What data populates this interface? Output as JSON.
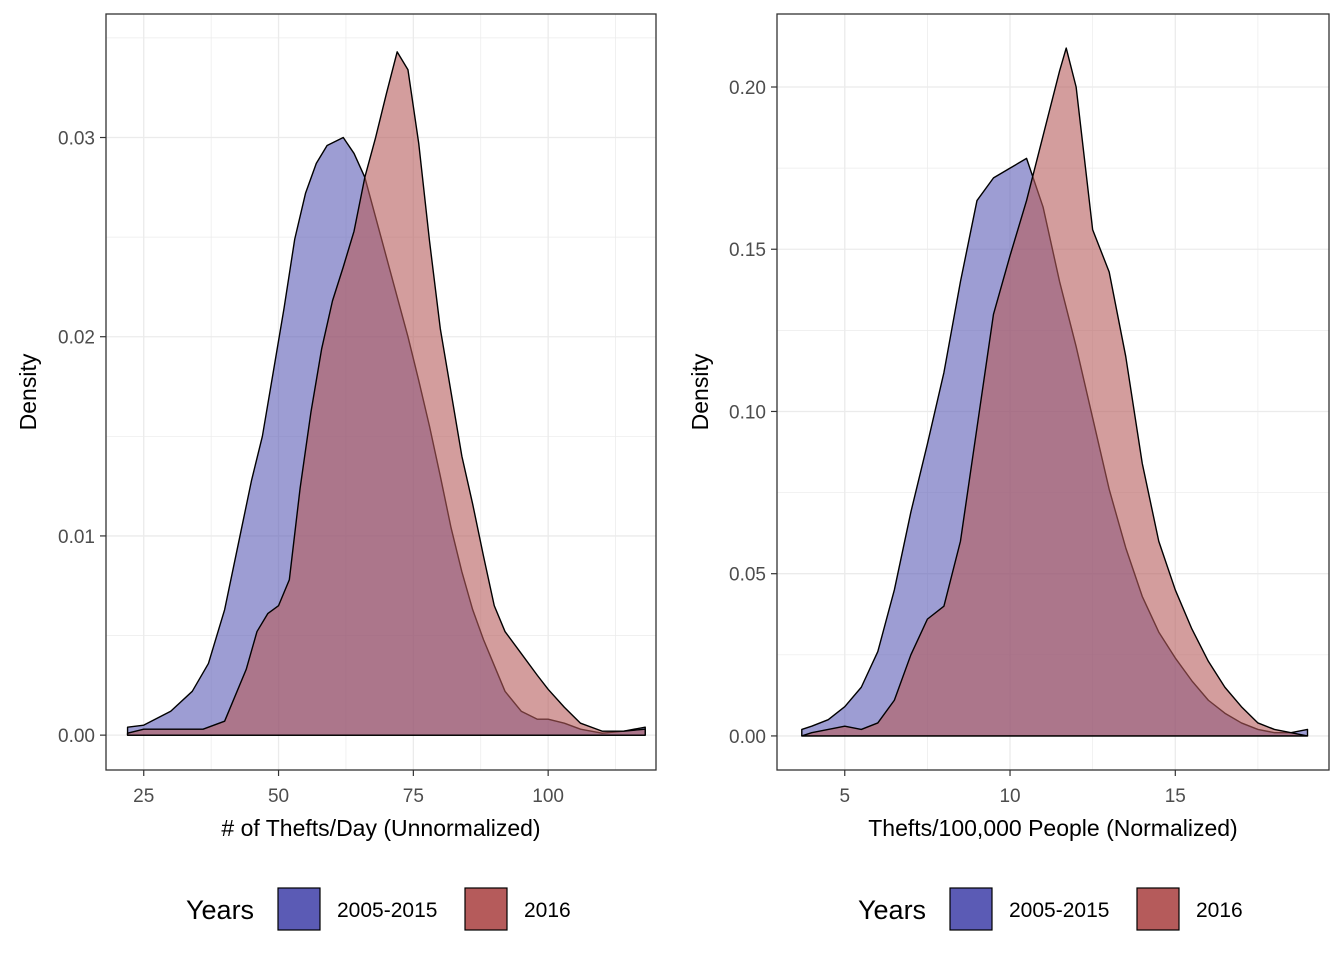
{
  "chart_data": [
    {
      "type": "area",
      "chart_kind": "density",
      "xlabel": "# of Thefts/Day (Unnormalized)",
      "ylabel": "Density",
      "xlim": [
        18,
        120
      ],
      "ylim": [
        -0.00175,
        0.0362
      ],
      "x_ticks": [
        25,
        50,
        75,
        100
      ],
      "x_tick_labels": [
        "25",
        "50",
        "75",
        "100"
      ],
      "y_ticks": [
        0.0,
        0.01,
        0.02,
        0.03
      ],
      "y_tick_labels": [
        "0.00",
        "0.01",
        "0.02",
        "0.03"
      ],
      "grid": true,
      "series": [
        {
          "name": "2005-2015",
          "color": "#5b5bb5",
          "x": [
            22,
            25,
            30,
            34,
            37,
            40,
            43,
            45,
            47,
            49,
            51,
            53,
            55,
            57,
            59,
            62,
            64,
            66,
            68,
            70,
            72,
            74,
            76,
            78,
            80,
            82,
            84,
            86,
            88,
            90,
            92,
            95,
            98,
            100,
            103,
            106,
            110,
            114,
            118
          ],
          "y": [
            0.0004,
            0.0005,
            0.0012,
            0.0022,
            0.0036,
            0.0063,
            0.0102,
            0.0128,
            0.015,
            0.0182,
            0.0214,
            0.0249,
            0.0272,
            0.0287,
            0.0296,
            0.03,
            0.0292,
            0.028,
            0.026,
            0.024,
            0.022,
            0.02,
            0.0178,
            0.0155,
            0.013,
            0.0104,
            0.0082,
            0.0063,
            0.0048,
            0.0035,
            0.0022,
            0.0012,
            0.0008,
            0.0008,
            0.0006,
            0.0003,
            0.0001,
            0.0002,
            0.0004
          ]
        },
        {
          "name": "2016",
          "color": "#b55b5b",
          "x": [
            22,
            25,
            28,
            32,
            36,
            40,
            44,
            46,
            48,
            50,
            52,
            54,
            56,
            58,
            60,
            62,
            64,
            66,
            68,
            70,
            72,
            74,
            76,
            78,
            80,
            82,
            84,
            86,
            88,
            90,
            92,
            95,
            98,
            100,
            103,
            106,
            110,
            114,
            118
          ],
          "y": [
            0.0001,
            0.0003,
            0.0003,
            0.0003,
            0.0003,
            0.0007,
            0.0033,
            0.0052,
            0.0061,
            0.0065,
            0.0078,
            0.0124,
            0.0162,
            0.0194,
            0.0218,
            0.0235,
            0.0253,
            0.028,
            0.03,
            0.0322,
            0.0343,
            0.0334,
            0.0297,
            0.0248,
            0.0204,
            0.0172,
            0.014,
            0.0116,
            0.009,
            0.0065,
            0.0052,
            0.0041,
            0.003,
            0.0023,
            0.0014,
            0.0006,
            0.0002,
            0.0002,
            0.0003
          ]
        }
      ]
    },
    {
      "type": "area",
      "chart_kind": "density",
      "xlabel": "Thefts/100,000 People (Normalized)",
      "ylabel": "Density",
      "xlim": [
        2.95,
        19.65
      ],
      "ylim": [
        -0.0105,
        0.2225
      ],
      "x_ticks": [
        5,
        10,
        15
      ],
      "x_tick_labels": [
        "5",
        "10",
        "15"
      ],
      "y_ticks": [
        0.0,
        0.05,
        0.1,
        0.15,
        0.2
      ],
      "y_tick_labels": [
        "0.00",
        "0.05",
        "0.10",
        "0.15",
        "0.20"
      ],
      "grid": true,
      "series": [
        {
          "name": "2005-2015",
          "color": "#5b5bb5",
          "x": [
            3.7,
            4.0,
            4.5,
            5.0,
            5.5,
            6.0,
            6.5,
            7.0,
            7.5,
            8.0,
            8.5,
            9.0,
            9.5,
            10.0,
            10.5,
            11.0,
            11.5,
            12.0,
            12.5,
            13.0,
            13.5,
            14.0,
            14.5,
            15.0,
            15.5,
            16.0,
            16.5,
            17.0,
            17.5,
            18.0,
            18.5,
            19.0
          ],
          "y": [
            0.002,
            0.003,
            0.005,
            0.009,
            0.015,
            0.026,
            0.045,
            0.069,
            0.09,
            0.112,
            0.14,
            0.165,
            0.172,
            0.175,
            0.178,
            0.163,
            0.14,
            0.12,
            0.098,
            0.076,
            0.058,
            0.043,
            0.032,
            0.024,
            0.017,
            0.011,
            0.007,
            0.004,
            0.002,
            0.001,
            0.001,
            0.002
          ]
        },
        {
          "name": "2016",
          "color": "#b55b5b",
          "x": [
            3.7,
            4.0,
            4.5,
            5.0,
            5.5,
            6.0,
            6.5,
            7.0,
            7.5,
            8.0,
            8.5,
            9.0,
            9.5,
            10.0,
            10.5,
            11.0,
            11.5,
            11.7,
            12.0,
            12.5,
            13.0,
            13.5,
            14.0,
            14.5,
            15.0,
            15.5,
            16.0,
            16.5,
            17.0,
            17.5,
            18.0,
            18.5,
            19.0
          ],
          "y": [
            0.0,
            0.001,
            0.002,
            0.003,
            0.002,
            0.004,
            0.011,
            0.025,
            0.036,
            0.04,
            0.06,
            0.095,
            0.13,
            0.148,
            0.165,
            0.185,
            0.205,
            0.212,
            0.2,
            0.156,
            0.143,
            0.117,
            0.084,
            0.06,
            0.045,
            0.033,
            0.023,
            0.015,
            0.009,
            0.004,
            0.002,
            0.001,
            0.0
          ]
        }
      ]
    }
  ],
  "legend": {
    "title": "Years",
    "entries": [
      {
        "label": "2005-2015",
        "color": "#5b5bb5"
      },
      {
        "label": "2016",
        "color": "#b55b5b"
      }
    ]
  }
}
